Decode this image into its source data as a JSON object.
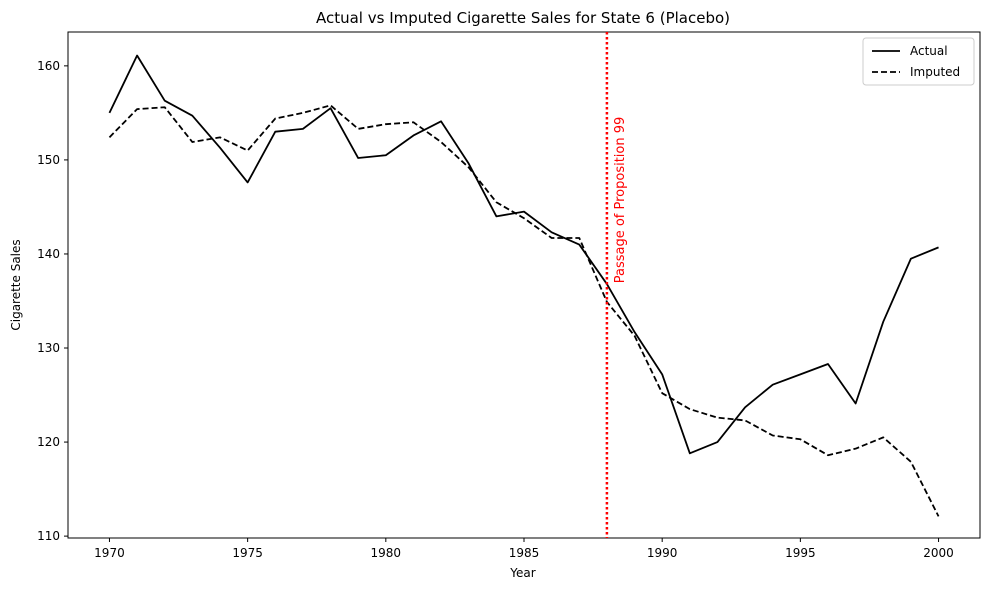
{
  "chart_data": {
    "type": "line",
    "title": "Actual vs Imputed Cigarette Sales for State 6 (Placebo)",
    "xlabel": "Year",
    "ylabel": "Cigarette Sales",
    "xlim": [
      1968.5,
      2001.5
    ],
    "ylim": [
      109.8,
      163.6
    ],
    "xticks": [
      1970,
      1975,
      1980,
      1985,
      1990,
      1995,
      2000
    ],
    "yticks": [
      110,
      120,
      130,
      140,
      150,
      160
    ],
    "grid": false,
    "legend_position": "top-right",
    "x": [
      1970,
      1971,
      1972,
      1973,
      1974,
      1975,
      1976,
      1977,
      1978,
      1979,
      1980,
      1981,
      1982,
      1983,
      1984,
      1985,
      1986,
      1987,
      1988,
      1989,
      1990,
      1991,
      1992,
      1993,
      1994,
      1995,
      1996,
      1997,
      1998,
      1999,
      2000
    ],
    "series": [
      {
        "name": "Actual",
        "style": "solid",
        "color": "#000000",
        "values": [
          155.0,
          161.1,
          156.3,
          154.7,
          151.3,
          147.6,
          153.0,
          153.3,
          155.5,
          150.2,
          150.5,
          152.6,
          154.1,
          149.6,
          144.0,
          144.5,
          142.3,
          141.0,
          136.8,
          131.7,
          127.2,
          118.8,
          120.0,
          123.7,
          126.1,
          127.2,
          128.3,
          124.1,
          132.8,
          139.5,
          140.7
        ]
      },
      {
        "name": "Imputed",
        "style": "dashed",
        "color": "#000000",
        "values": [
          152.4,
          155.4,
          155.6,
          151.9,
          152.4,
          151.0,
          154.4,
          155.0,
          155.8,
          153.3,
          153.8,
          154.0,
          151.9,
          149.2,
          145.5,
          143.8,
          141.7,
          141.7,
          134.9,
          131.3,
          125.2,
          123.5,
          122.6,
          122.3,
          120.7,
          120.3,
          118.6,
          119.3,
          120.5,
          117.9,
          112.1
        ]
      }
    ],
    "vline": {
      "x": 1988,
      "color": "#ff0000",
      "style": "dotted",
      "label": "Passage of Proposition 99"
    }
  }
}
